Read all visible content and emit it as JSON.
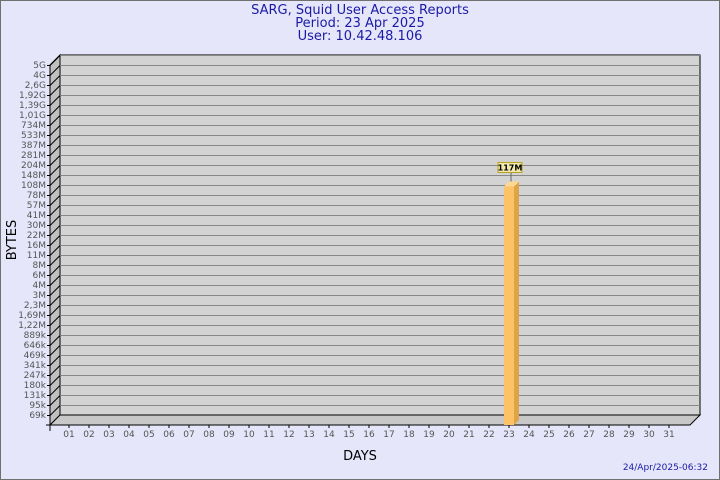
{
  "chart_data": {
    "type": "bar",
    "title": [
      "SARG, Squid User Access Reports",
      "Period: 23 Apr 2025",
      "User: 10.42.48.106"
    ],
    "xlabel": "DAYS",
    "ylabel": "BYTES",
    "y_scale": "log",
    "y_tick_labels": [
      "5G",
      "4G",
      "2,6G",
      "1,92G",
      "1,39G",
      "1,01G",
      "734M",
      "533M",
      "387M",
      "281M",
      "204M",
      "148M",
      "108M",
      "78M",
      "57M",
      "41M",
      "30M",
      "22M",
      "16M",
      "11M",
      "8M",
      "6M",
      "4M",
      "3M",
      "2,3M",
      "1,69M",
      "1,22M",
      "889k",
      "646k",
      "469k",
      "341k",
      "247k",
      "180k",
      "131k",
      "95k",
      "69k"
    ],
    "categories": [
      "01",
      "02",
      "03",
      "04",
      "05",
      "06",
      "07",
      "08",
      "09",
      "10",
      "11",
      "12",
      "13",
      "14",
      "15",
      "16",
      "17",
      "18",
      "19",
      "20",
      "21",
      "22",
      "23",
      "24",
      "25",
      "26",
      "27",
      "28",
      "29",
      "30",
      "31"
    ],
    "values": [
      {
        "day": "23",
        "value_label": "117M"
      }
    ],
    "grid": true,
    "colors": {
      "bar": "#fcc266",
      "bar_side": "#e0a448",
      "plot_bg": "#d3d3d3",
      "page_bg": "#e6e6fa",
      "title": "#1a1aa6",
      "label_box": "#f2eaaa"
    }
  },
  "footer_timestamp": "24/Apr/2025-06:32"
}
